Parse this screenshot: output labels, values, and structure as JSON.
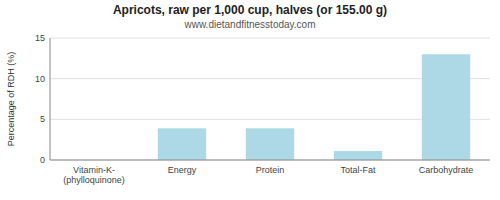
{
  "chart_data": {
    "type": "bar",
    "title": "Apricots, raw per 1,000 cup, halves (or 155.00 g)",
    "subtitle": "www.dietandfitnesstoday.com",
    "categories": [
      "Vitamin-K-(phylloquinone)",
      "Energy",
      "Protein",
      "Total-Fat",
      "Carbohydrate"
    ],
    "values": [
      0.0,
      3.9,
      3.9,
      1.1,
      13.0
    ],
    "color": "#add8e6",
    "ylabel": "Percentage of RDH (%)",
    "ylim": [
      0,
      15
    ],
    "yticks": [
      0,
      5,
      10,
      15
    ],
    "grid": true
  }
}
